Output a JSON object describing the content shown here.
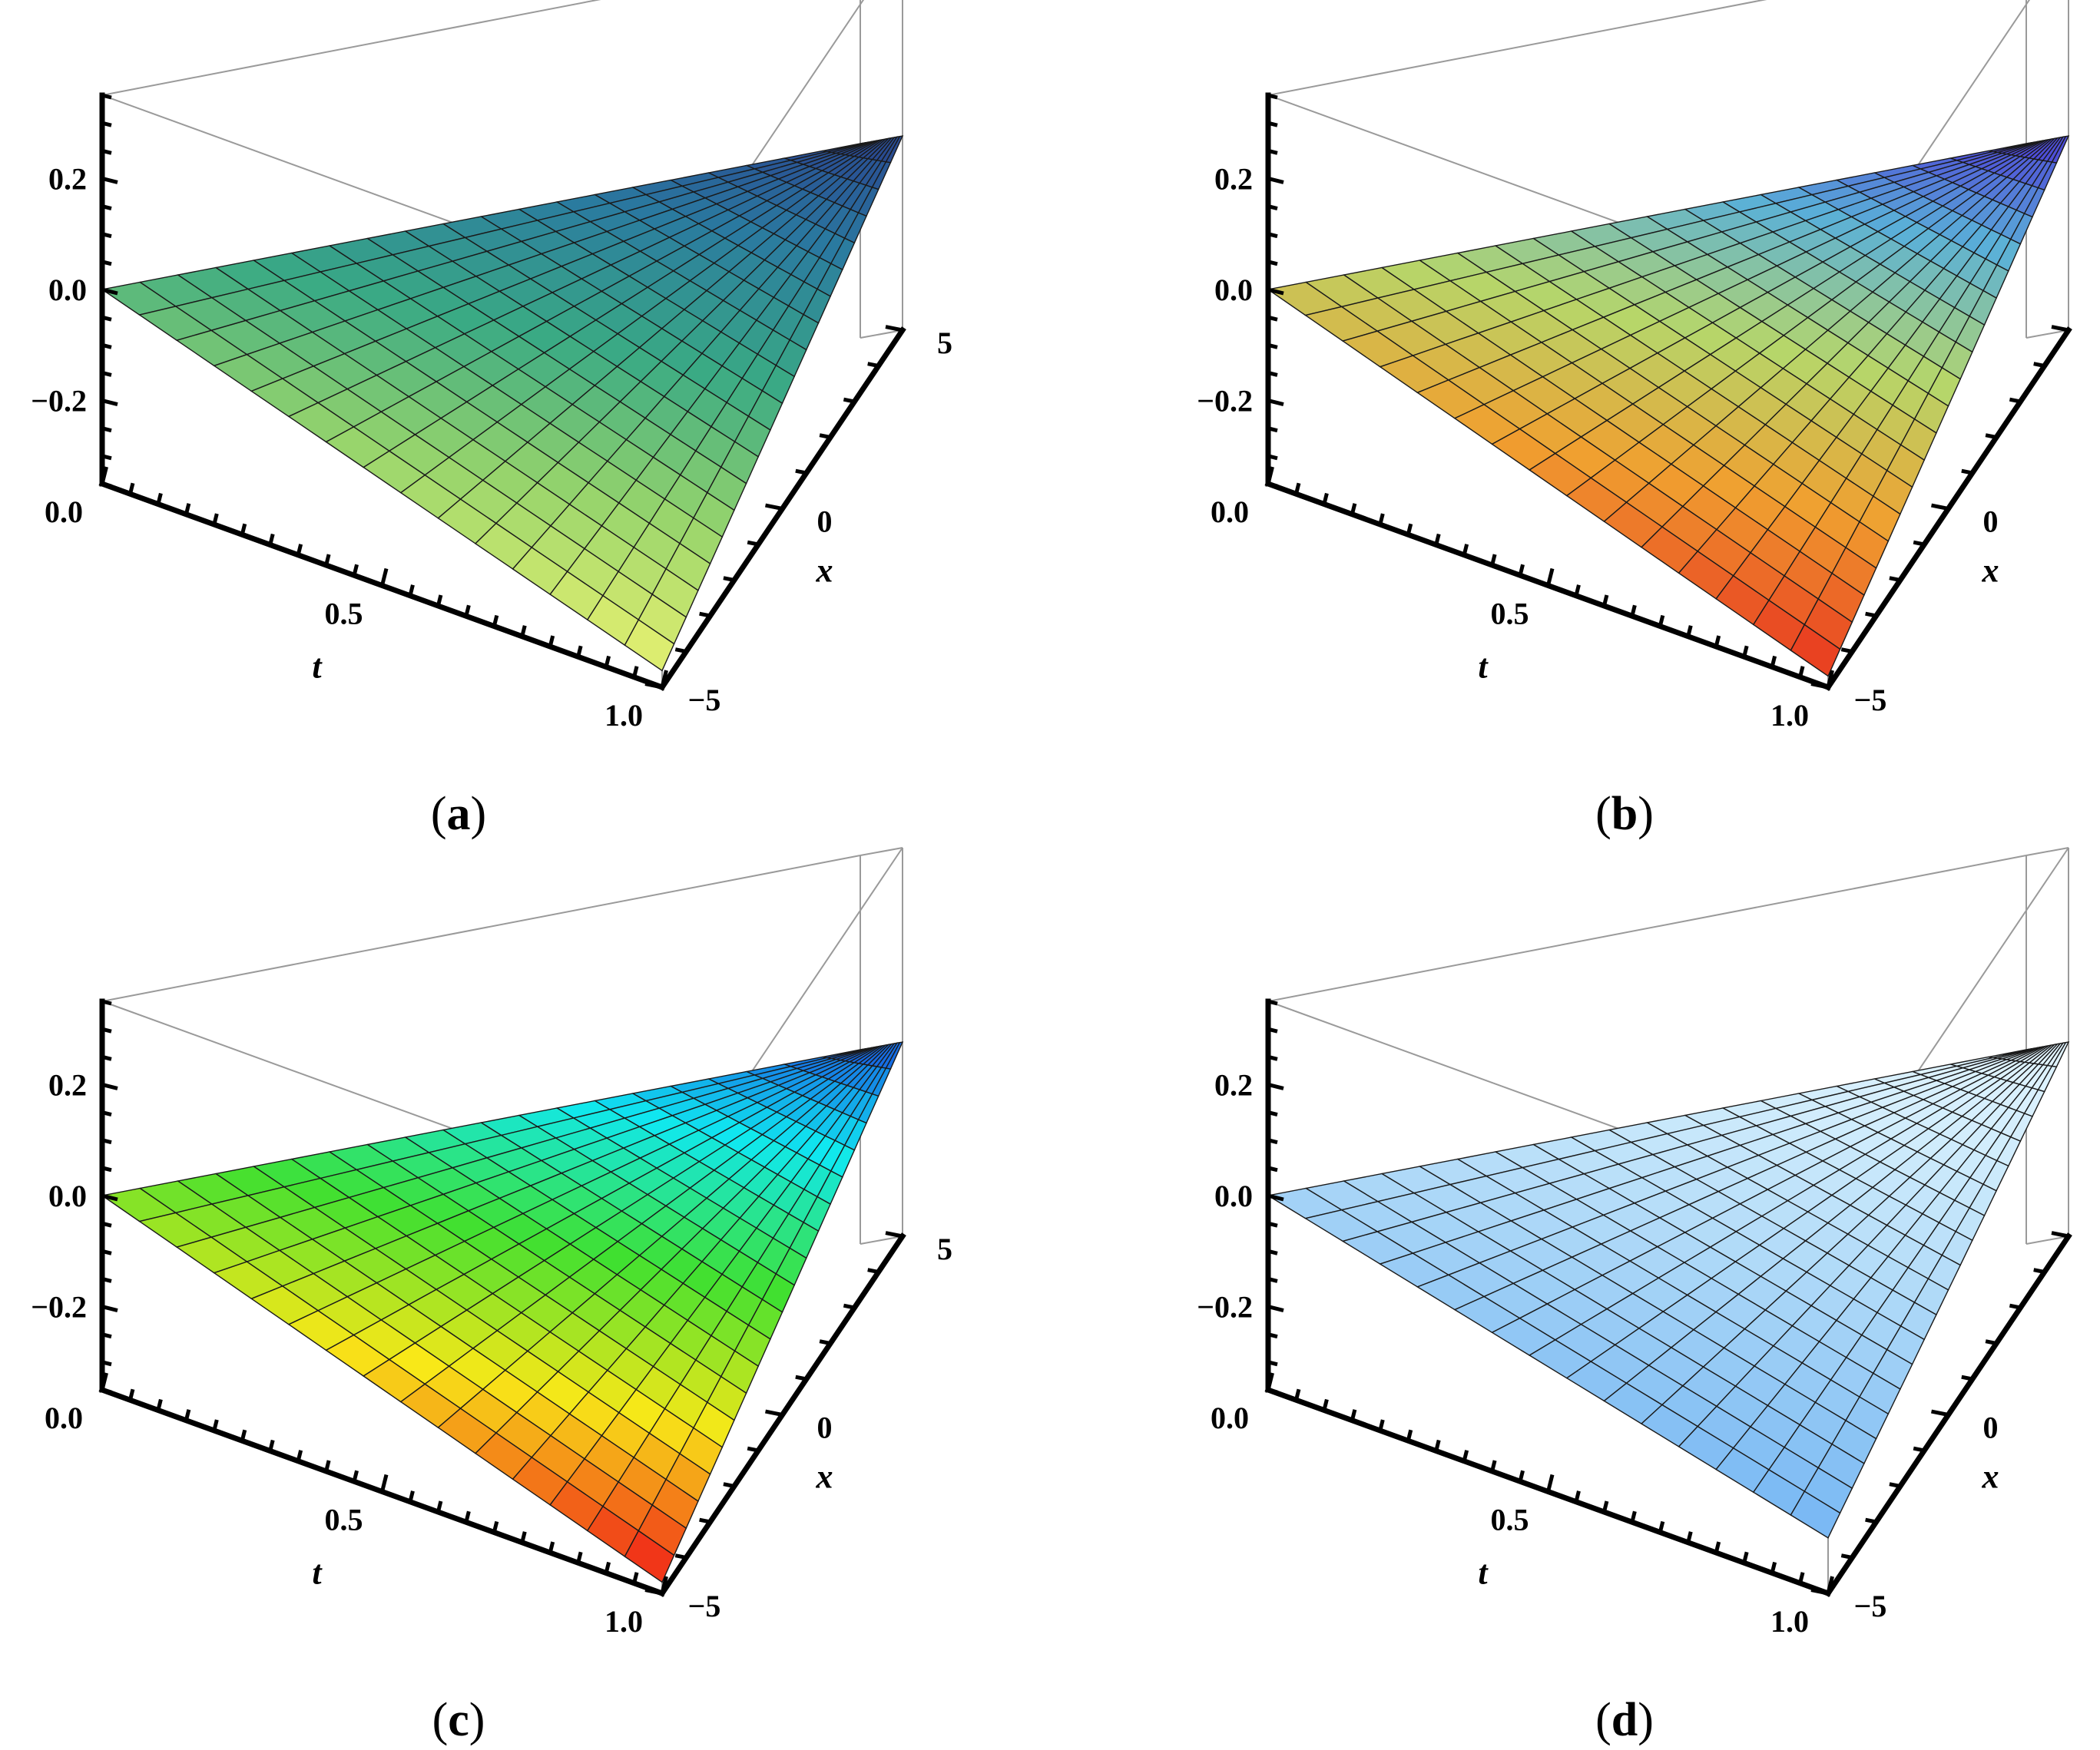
{
  "chart_data": [
    {
      "type": "surface3d",
      "caption": "a",
      "xlabel": "t",
      "ylabel": "x",
      "xlim": [
        0,
        1
      ],
      "ylim": [
        -5,
        5
      ],
      "zlim": [
        -0.35,
        0.35
      ],
      "xticks": [
        "0.0",
        "0.5",
        "1.0"
      ],
      "yticks": [
        "−5",
        "0",
        "5"
      ],
      "zticks": [
        "0.2",
        "0.0",
        "−0.2"
      ],
      "corner_values": {
        "t0_xm5": 0.0,
        "t0_x5": 0.0,
        "t1_xm5": -0.32,
        "t1_x5": 0.0,
        "t0_x0": 0.0
      },
      "colorscheme": [
        "#e6f070",
        "#96d46c",
        "#3aaa84",
        "#2a7aa0",
        "#283a8c"
      ]
    },
    {
      "type": "surface3d",
      "caption": "b",
      "xlabel": "t",
      "ylabel": "x",
      "xlim": [
        0,
        1
      ],
      "ylim": [
        -5,
        5
      ],
      "zlim": [
        -0.35,
        0.35
      ],
      "xticks": [
        "0.0",
        "0.5",
        "1.0"
      ],
      "yticks": [
        "−5",
        "0",
        "5"
      ],
      "zticks": [
        "0.2",
        "0.0",
        "−0.2"
      ],
      "corner_values": {
        "t0_xm5": 0.0,
        "t0_x5": 0.0,
        "t1_xm5": -0.33,
        "t1_x5": 0.0,
        "t0_x0": 0.0
      },
      "colorscheme": [
        "#e83a20",
        "#f0a030",
        "#b6d66a",
        "#5ab0d8",
        "#4a2ad8"
      ]
    },
    {
      "type": "surface3d",
      "caption": "c",
      "xlabel": "t",
      "ylabel": "x",
      "xlim": [
        0,
        1
      ],
      "ylim": [
        -5,
        5
      ],
      "zlim": [
        -0.35,
        0.35
      ],
      "xticks": [
        "0.0",
        "0.5",
        "1.0"
      ],
      "yticks": [
        "−5",
        "0",
        "5"
      ],
      "zticks": [
        "0.2",
        "0.0",
        "−0.2"
      ],
      "corner_values": {
        "t0_xm5": 0.0,
        "t0_x5": 0.0,
        "t1_xm5": -0.33,
        "t1_x5": 0.0,
        "t0_x0": 0.0
      },
      "colorscheme": [
        "#f02818",
        "#f8e818",
        "#40e030",
        "#10e8f0",
        "#1840e0"
      ]
    },
    {
      "type": "surface3d",
      "caption": "d",
      "xlabel": "t",
      "ylabel": "x",
      "xlim": [
        0,
        1
      ],
      "ylim": [
        -5,
        5
      ],
      "zlim": [
        -0.35,
        0.35
      ],
      "xticks": [
        "0.0",
        "0.5",
        "1.0"
      ],
      "yticks": [
        "−5",
        "0",
        "5"
      ],
      "zticks": [
        "0.2",
        "0.0",
        "−0.2"
      ],
      "corner_values": {
        "t0_xm5": 0.0,
        "t0_x5": 0.0,
        "t1_xm5": -0.25,
        "t1_x5": 0.0,
        "t0_x0": 0.0
      },
      "colorscheme": [
        "#6cb0f4",
        "#8cc4f4",
        "#b0daf8",
        "#d0ecfc",
        "#e6f6ff"
      ]
    }
  ]
}
